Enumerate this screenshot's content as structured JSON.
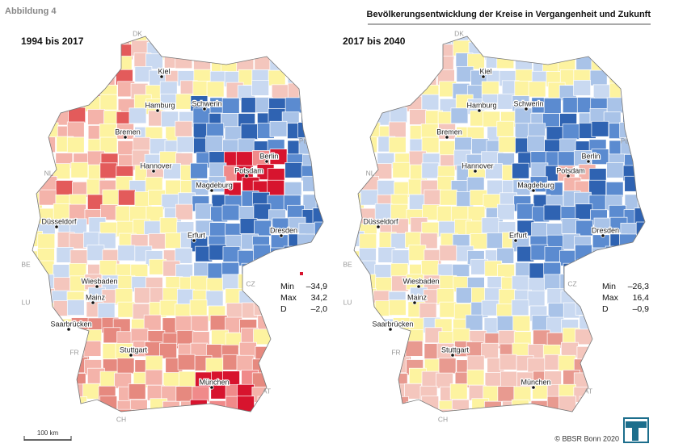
{
  "header": {
    "figure": "Abbildung 4",
    "title": "Bevölkerungsentwicklung der Kreise in Vergangenheit und Zukunft"
  },
  "panels": [
    {
      "heading": "1994 bis 2017",
      "cities": [
        "Kiel",
        "Hamburg",
        "Schwerin",
        "Bremen",
        "Berlin",
        "Hannover",
        "Potsdam",
        "Magdeburg",
        "Düsseldorf",
        "Erfurt",
        "Dresden",
        "Wiesbaden",
        "Mainz",
        "Saarbrücken",
        "Stuttgart",
        "München"
      ],
      "countries": [
        "DK",
        "NL",
        "PL",
        "BE",
        "LU",
        "FR",
        "CZ",
        "AT",
        "CH"
      ],
      "stats": [
        {
          "label": "Min",
          "value": "–34,9"
        },
        {
          "label": "Max",
          "value": "34,2"
        },
        {
          "label": "D",
          "value": "–2,0"
        }
      ]
    },
    {
      "heading": "2017 bis 2040",
      "cities": [
        "Kiel",
        "Hamburg",
        "Schwerin",
        "Bremen",
        "Berlin",
        "Hannover",
        "Potsdam",
        "Magdeburg",
        "Düsseldorf",
        "Erfurt",
        "Dresden",
        "Wiesbaden",
        "Mainz",
        "Saarbrücken",
        "Stuttgart",
        "München"
      ],
      "countries": [
        "DK",
        "NL",
        "PL",
        "BE",
        "LU",
        "FR",
        "CZ",
        "AT",
        "CH"
      ],
      "stats": [
        {
          "label": "Min",
          "value": "–26,3"
        },
        {
          "label": "Max",
          "value": "16,4"
        },
        {
          "label": "D",
          "value": "–0,9"
        }
      ]
    }
  ],
  "footer": {
    "scale": "100 km",
    "copyright": "© BBSR Bonn 2020"
  }
}
